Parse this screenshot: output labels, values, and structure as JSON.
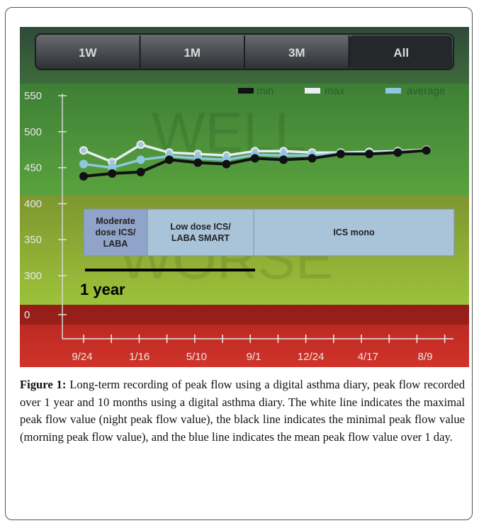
{
  "segments": [
    {
      "label": "1W"
    },
    {
      "label": "1M"
    },
    {
      "label": "3M"
    },
    {
      "label": "All"
    }
  ],
  "watermarks": {
    "upper": "WELL",
    "lower": "WORSE"
  },
  "regimens": [
    {
      "lines": [
        "Moderate",
        "dose ICS/",
        "LABA"
      ],
      "color": "#8fa4c8"
    },
    {
      "lines": [
        "Low dose ICS/",
        "LABA   SMART"
      ],
      "color": "#a9c3d8"
    },
    {
      "lines": [
        "ICS mono"
      ],
      "color": "#a9c3d8"
    }
  ],
  "scale_bar_label": "1 year",
  "caption": {
    "label": "Figure 1:",
    "text": " Long-term recording of peak flow using a digital asthma diary, peak flow recorded over 1 year and 10 months using a digital asthma diary. The white line indicates the maximal peak flow value (night peak flow value), the black line indicates the minimal peak flow value (morning peak flow value), and the blue line indicates the mean peak flow value over 1 day."
  },
  "colors": {
    "min": "#111111",
    "max": "#e8eef4",
    "average": "#8fc8de",
    "band_green": "#4f9a3c",
    "band_olive": "#7f9a2c",
    "band_yellowgreen": "#8fbc3a",
    "band_red": "#c42a22"
  },
  "chart_data": {
    "type": "line",
    "title": "",
    "xlabel": "",
    "ylabel": "",
    "x_tick_labels": [
      "9/24",
      "1/16",
      "5/10",
      "9/1",
      "12/24",
      "4/17",
      "8/9"
    ],
    "y_tick_labels": [
      "550",
      "500",
      "450",
      "400",
      "350",
      "300",
      "0"
    ],
    "ylim": [
      0,
      550
    ],
    "legend": [
      "min",
      "max",
      "average"
    ],
    "legend_position": "top-right",
    "x": [
      1,
      2,
      3,
      4,
      5,
      6,
      7,
      8,
      9,
      10,
      11,
      12,
      13
    ],
    "series": [
      {
        "name": "min",
        "values": [
          438,
          442,
          444,
          461,
          457,
          455,
          463,
          461,
          463,
          469,
          469,
          471,
          474
        ]
      },
      {
        "name": "max",
        "values": [
          474,
          458,
          482,
          471,
          469,
          467,
          473,
          473,
          471,
          471,
          472,
          473,
          475
        ]
      },
      {
        "name": "average",
        "values": [
          455,
          450,
          461,
          466,
          463,
          461,
          468,
          467,
          467,
          470,
          470,
          472,
          474
        ]
      }
    ]
  }
}
